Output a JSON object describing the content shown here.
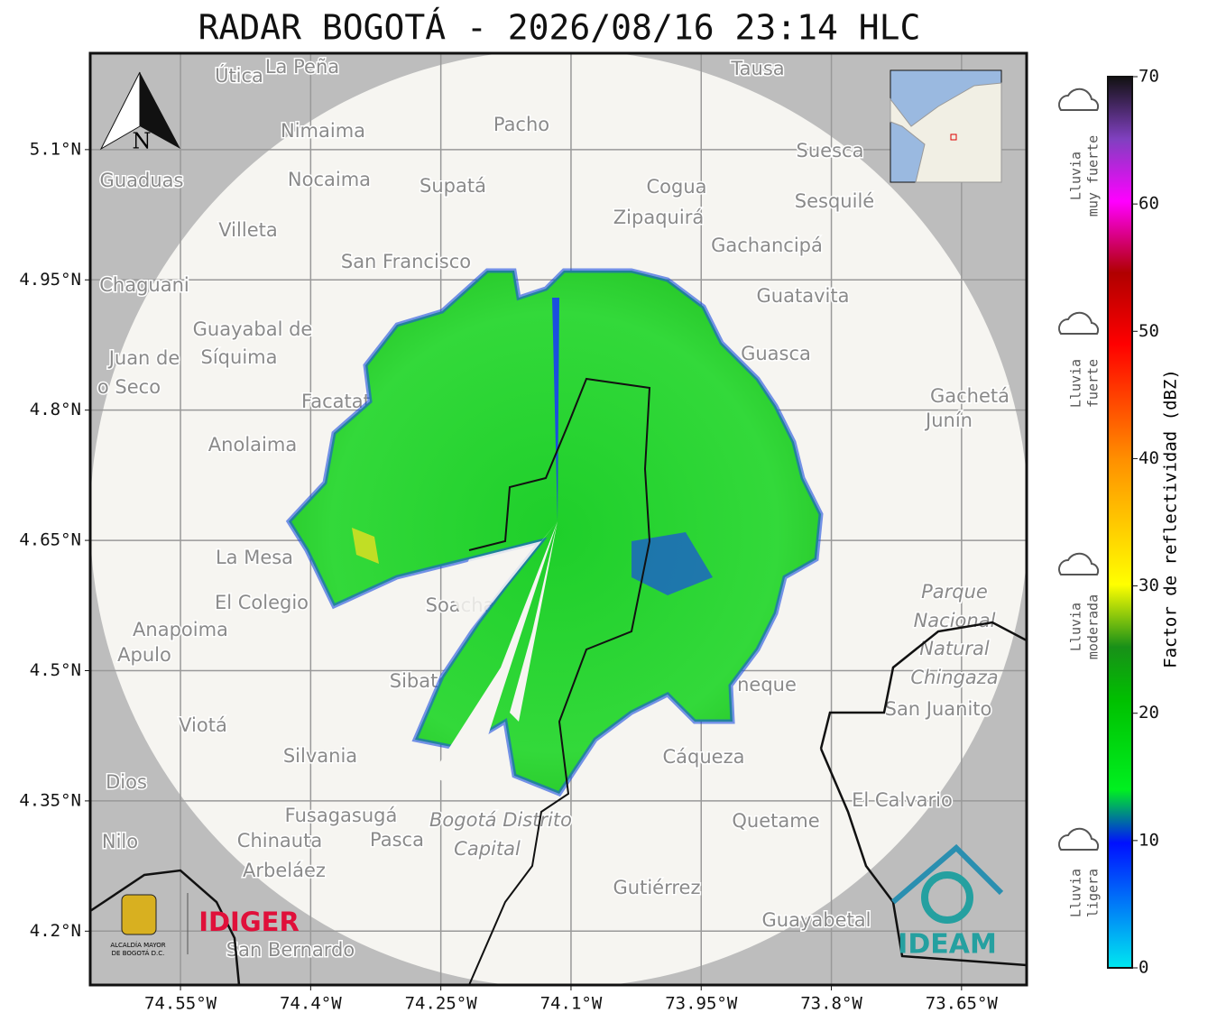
{
  "title": "RADAR BOGOTÁ - 2026/08/16 23:14 HLC",
  "north": "N",
  "map": {
    "xlim": [
      -74.654,
      -73.575
    ],
    "ylim": [
      4.138,
      5.211
    ],
    "xticks": [
      {
        "value": -74.55,
        "label": "74.55°W"
      },
      {
        "value": -74.4,
        "label": "74.4°W"
      },
      {
        "value": -74.25,
        "label": "74.25°W"
      },
      {
        "value": -74.1,
        "label": "74.1°W"
      },
      {
        "value": -73.95,
        "label": "73.95°W"
      },
      {
        "value": -73.8,
        "label": "73.8°W"
      },
      {
        "value": -73.65,
        "label": "73.65°W"
      }
    ],
    "yticks": [
      {
        "value": 5.1,
        "label": "5.1°N"
      },
      {
        "value": 4.95,
        "label": "4.95°N"
      },
      {
        "value": 4.8,
        "label": "4.8°N"
      },
      {
        "value": 4.65,
        "label": "4.65°N"
      },
      {
        "value": 4.5,
        "label": "4.5°N"
      },
      {
        "value": 4.35,
        "label": "4.35°N"
      },
      {
        "value": 4.2,
        "label": "4.2°N"
      }
    ],
    "places": [
      "Útica",
      "La Peña",
      "Tausa",
      "Pacho",
      "Nimaima",
      "Suesca",
      "Guaduas",
      "Nocaima",
      "Supatá",
      "Cogua",
      "Sesquilé",
      "Zipaquirá",
      "Villeta",
      "Gachancipá",
      "San Francisco",
      "Chaguani",
      "Guatavita",
      "Guayabal de",
      "Síquima",
      "Juan de",
      "Guasca",
      "o Seco",
      "Facatativá",
      "Gachetá",
      "Junín",
      "Anolaima",
      "La Mesa",
      "El Colegio",
      "Parque",
      "Nacional",
      "Natural",
      "Chingaza",
      "Anapoima",
      "Apulo",
      "Soacha",
      "Sibaté",
      "neque",
      "San Juanito",
      "Viotá",
      "Silvania",
      "Cáqueza",
      "El Calvario",
      "Dios",
      "Fusagasugá",
      "Quetame",
      "Bogotá Distrito",
      "Capital",
      "Nilo",
      "Chinauta",
      "Pasca",
      "Arbeláez",
      "Gutiérrez",
      "Guayabetal",
      "San Bernardo"
    ]
  },
  "colorbar": {
    "label": "Factor de reflectividad (dBZ)",
    "lim": [
      0,
      70
    ],
    "ticks": [
      0,
      10,
      20,
      30,
      40,
      50,
      60,
      70
    ]
  },
  "rain_levels": [
    [
      "Lluvia",
      "muy fuerte"
    ],
    [
      "Lluvia",
      "fuerte"
    ],
    [
      "Lluvia",
      "moderada"
    ],
    [
      "Lluvia",
      "ligera"
    ]
  ],
  "logos": {
    "alcaldia": [
      "ALCALDÍA MAYOR",
      "DE BOGOTÁ D.C."
    ],
    "idiger": "IDIGER",
    "ideam": "IDEAM"
  }
}
